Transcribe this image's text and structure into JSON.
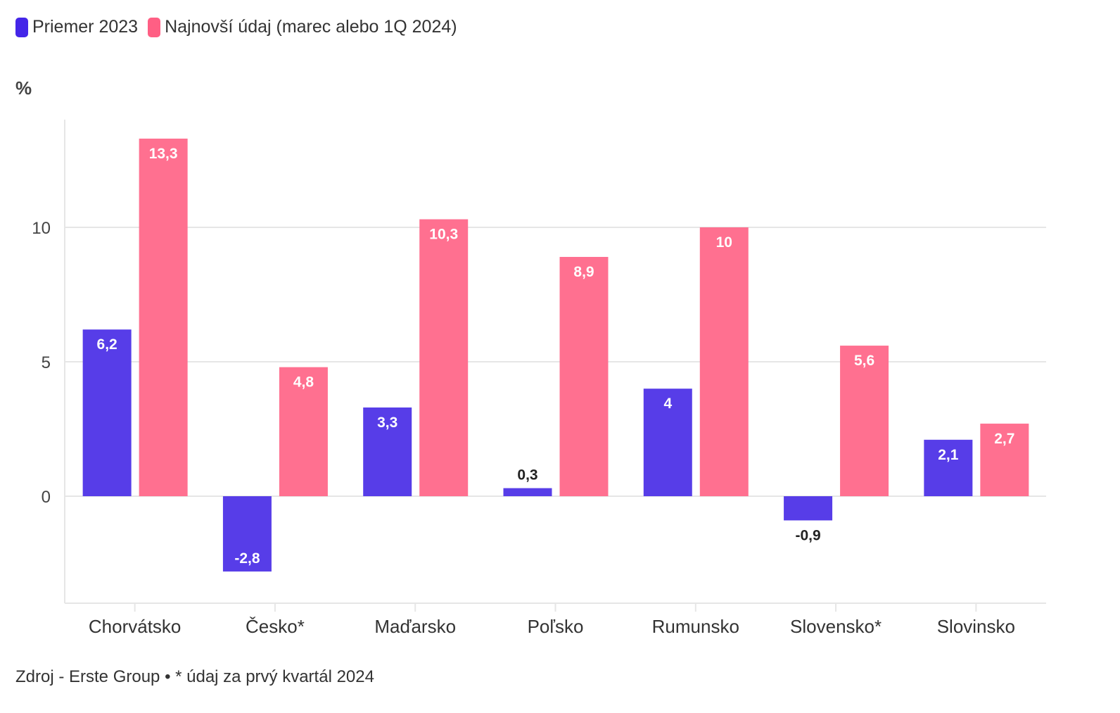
{
  "chart_data": {
    "type": "bar",
    "ylabel": "%",
    "categories": [
      "Chorvátsko",
      "Česko*",
      "Maďarsko",
      "Poľsko",
      "Rumunsko",
      "Slovensko*",
      "Slovinsko"
    ],
    "series": [
      {
        "name": "Priemer 2023",
        "color": "#573DE8",
        "values": [
          6.2,
          -2.8,
          3.3,
          0.3,
          4,
          -0.9,
          2.1
        ],
        "labels": [
          "6,2",
          "-2,8",
          "3,3",
          "0,3",
          "4",
          "-0,9",
          "2,1"
        ]
      },
      {
        "name": "Najnovší údaj (marec alebo 1Q 2024)",
        "color": "#FF7090",
        "values": [
          13.3,
          4.8,
          10.3,
          8.9,
          10,
          5.6,
          2.7
        ],
        "labels": [
          "13,3",
          "4,8",
          "10,3",
          "8,9",
          "10",
          "5,6",
          "2,7"
        ]
      }
    ],
    "ylim": [
      -4,
      14
    ],
    "yticks": [
      0,
      5,
      10
    ],
    "ytick_labels": [
      "0",
      "5",
      "10"
    ],
    "grid": true,
    "legend_placement": "top-left"
  },
  "legend_colors": [
    "#4426E8",
    "#FF5F84"
  ],
  "source": "Zdroj - Erste Group • * údaj za prvý kvartál 2024"
}
